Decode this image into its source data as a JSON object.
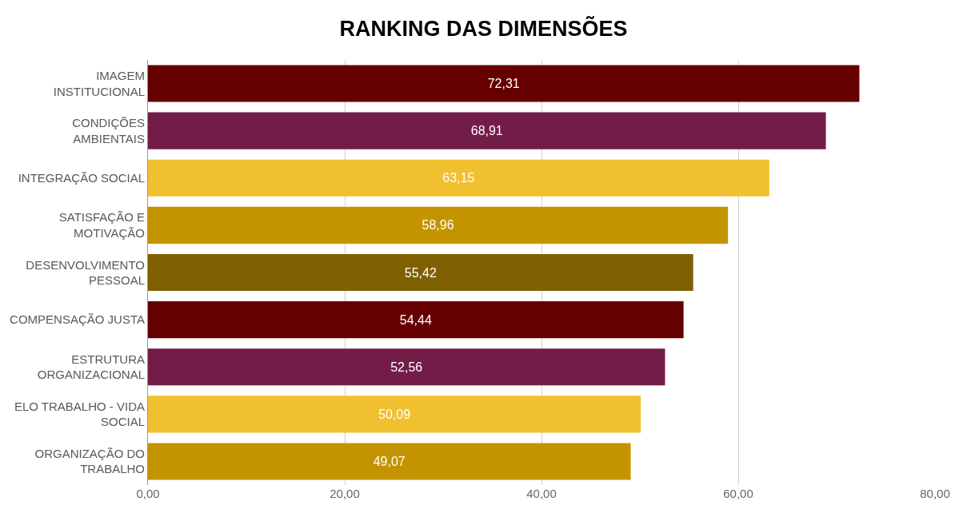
{
  "chart_data": {
    "type": "bar",
    "orientation": "horizontal",
    "title": "RANKING DAS DIMENSÕES",
    "categories": [
      "IMAGEM INSTITUCIONAL",
      "CONDIÇÕES AMBIENTAIS",
      "INTEGRAÇÃO SOCIAL",
      "SATISFAÇÃO E MOTIVAÇÃO",
      "DESENVOLVIMENTO PESSOAL",
      "COMPENSAÇÃO JUSTA",
      "ESTRUTURA ORGANIZACIONAL",
      "ELO TRABALHO - VIDA SOCIAL",
      "ORGANIZAÇÃO DO TRABALHO"
    ],
    "values": [
      72.31,
      68.91,
      63.15,
      58.96,
      55.42,
      54.44,
      52.56,
      50.09,
      49.07
    ],
    "value_labels": [
      "72,31",
      "68,91",
      "63,15",
      "58,96",
      "55,42",
      "54,44",
      "52,56",
      "50,09",
      "49,07"
    ],
    "colors": [
      "#660000",
      "#731c47",
      "#f0c030",
      "#c49400",
      "#7f6000",
      "#660000",
      "#731c47",
      "#f0c030",
      "#c49400"
    ],
    "xlim": [
      0,
      80
    ],
    "xticks": [
      {
        "value": 0,
        "label": "0,00"
      },
      {
        "value": 20,
        "label": "20,00"
      },
      {
        "value": 40,
        "label": "40,00"
      },
      {
        "value": 60,
        "label": "60,00"
      },
      {
        "value": 80,
        "label": "80,00"
      }
    ],
    "grid": "x",
    "legend": false
  }
}
